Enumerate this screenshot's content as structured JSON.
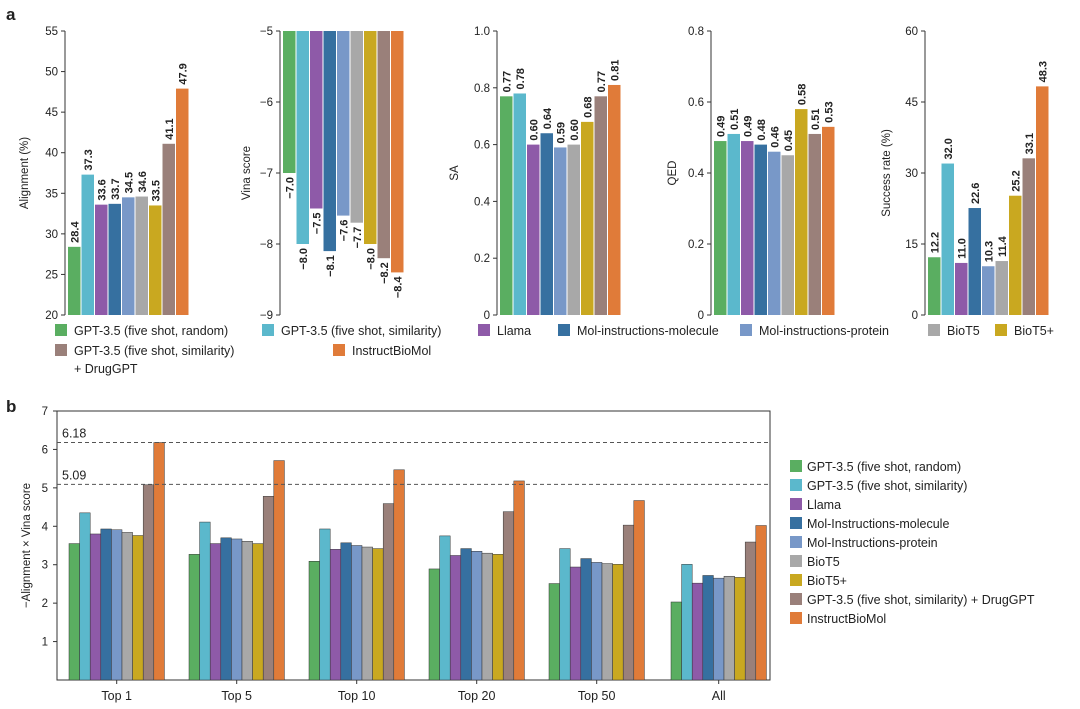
{
  "panel_labels": {
    "a": "a",
    "b": "b"
  },
  "legend_a": [
    {
      "label": "GPT-3.5 (five shot, random)",
      "color": "#5aae61"
    },
    {
      "label": "GPT-3.5 (five shot, similarity)",
      "color": "#5bb8cc"
    },
    {
      "label": "Llama",
      "color": "#8e5aa8"
    },
    {
      "label": "Mol-instructions-molecule",
      "color": "#3670a0"
    },
    {
      "label": "Mol-instructions-protein",
      "color": "#7898c8"
    },
    {
      "label": "BioT5",
      "color": "#a8a8a8"
    },
    {
      "label": "BioT5+",
      "color": "#c9a820"
    },
    {
      "label": "GPT-3.5 (five shot, similarity)",
      "label2": "+ DrugGPT",
      "color": "#9a807a"
    },
    {
      "label": "InstructBioMol",
      "color": "#e07b39"
    }
  ],
  "legend_b": [
    {
      "label": "GPT-3.5 (five shot, random)",
      "color": "#5aae61"
    },
    {
      "label": "GPT-3.5 (five shot, similarity)",
      "color": "#5bb8cc"
    },
    {
      "label": "Llama",
      "color": "#8e5aa8"
    },
    {
      "label": "Mol-Instructions-molecule",
      "color": "#3670a0"
    },
    {
      "label": "Mol-Instructions-protein",
      "color": "#7898c8"
    },
    {
      "label": "BioT5",
      "color": "#a8a8a8"
    },
    {
      "label": "BioT5+",
      "color": "#c9a820"
    },
    {
      "label": "GPT-3.5 (five shot, similarity) + DrugGPT",
      "color": "#9a807a"
    },
    {
      "label": "InstructBioMol",
      "color": "#e07b39"
    }
  ],
  "chart_data": [
    {
      "type": "bar",
      "ylabel": "Alignment (%)",
      "ylim": [
        20,
        55
      ],
      "yticks": [
        20,
        25,
        30,
        35,
        40,
        45,
        50,
        55
      ],
      "values": [
        28.4,
        37.3,
        33.6,
        33.7,
        34.5,
        34.6,
        33.5,
        41.1,
        47.9
      ],
      "labels": [
        "28.4",
        "37.3",
        "33.6",
        "33.7",
        "34.5",
        "34.6",
        "33.5",
        "41.1",
        "47.9"
      ],
      "grid": false
    },
    {
      "type": "bar",
      "ylabel": "Vina score",
      "ylim": [
        -9,
        -5
      ],
      "inverted": true,
      "yticks": [
        -9,
        -8,
        -7,
        -6,
        -5
      ],
      "ytick_labels": [
        "−9",
        "−8",
        "−7",
        "−6",
        "−5"
      ],
      "values": [
        -7.0,
        -8.0,
        -7.5,
        -8.1,
        -7.6,
        -7.7,
        -8.0,
        -8.2,
        -8.4
      ],
      "labels": [
        "−7.0",
        "−8.0",
        "−7.5",
        "−8.1",
        "−7.6",
        "−7.7",
        "−8.0",
        "−8.2",
        "−8.4"
      ],
      "grid": false
    },
    {
      "type": "bar",
      "ylabel": "SA",
      "ylim": [
        0,
        1.0
      ],
      "yticks": [
        0,
        0.2,
        0.4,
        0.6,
        0.8,
        1.0
      ],
      "ytick_labels": [
        "0",
        "0.2",
        "0.4",
        "0.6",
        "0.8",
        "1.0"
      ],
      "values": [
        0.77,
        0.78,
        0.6,
        0.64,
        0.59,
        0.6,
        0.68,
        0.77,
        0.81
      ],
      "labels": [
        "0.77",
        "0.78",
        "0.60",
        "0.64",
        "0.59",
        "0.60",
        "0.68",
        "0.77",
        "0.81"
      ],
      "grid": false
    },
    {
      "type": "bar",
      "ylabel": "QED",
      "ylim": [
        0,
        0.8
      ],
      "yticks": [
        0,
        0.2,
        0.4,
        0.6,
        0.8
      ],
      "ytick_labels": [
        "0",
        "0.2",
        "0.4",
        "0.6",
        "0.8"
      ],
      "values": [
        0.49,
        0.51,
        0.49,
        0.48,
        0.46,
        0.45,
        0.58,
        0.51,
        0.53
      ],
      "labels": [
        "0.49",
        "0.51",
        "0.49",
        "0.48",
        "0.46",
        "0.45",
        "0.58",
        "0.51",
        "0.53"
      ],
      "grid": false
    },
    {
      "type": "bar",
      "ylabel": "Success rate (%)",
      "ylim": [
        0,
        60
      ],
      "yticks": [
        0,
        15,
        30,
        45,
        60
      ],
      "ytick_labels": [
        "0",
        "15",
        "30",
        "45",
        "60"
      ],
      "values": [
        12.2,
        32.0,
        11.0,
        22.6,
        10.3,
        11.4,
        25.2,
        33.1,
        48.3
      ],
      "labels": [
        "12.2",
        "32.0",
        "11.0",
        "22.6",
        "10.3",
        "11.4",
        "25.2",
        "33.1",
        "48.3"
      ],
      "grid": false
    },
    {
      "type": "bar",
      "ylabel": "−Alignment × Vina score",
      "ylim": [
        0,
        7
      ],
      "yticks": [
        1,
        2,
        3,
        4,
        5,
        6,
        7
      ],
      "categories": [
        "Top 1",
        "Top 5",
        "Top 10",
        "Top 20",
        "Top 50",
        "All"
      ],
      "reference_lines": [
        {
          "value": 6.18,
          "label": "6.18"
        },
        {
          "value": 5.09,
          "label": "5.09"
        }
      ],
      "series": [
        {
          "name": "GPT-3.5 (five shot, random)",
          "values": [
            3.55,
            3.27,
            3.09,
            2.89,
            2.51,
            2.03
          ]
        },
        {
          "name": "GPT-3.5 (five shot, similarity)",
          "values": [
            4.35,
            4.11,
            3.93,
            3.75,
            3.42,
            3.01
          ]
        },
        {
          "name": "Llama",
          "values": [
            3.8,
            3.55,
            3.4,
            3.24,
            2.94,
            2.52
          ]
        },
        {
          "name": "Mol-Instructions-molecule",
          "values": [
            3.93,
            3.7,
            3.57,
            3.42,
            3.16,
            2.72
          ]
        },
        {
          "name": "Mol-Instructions-protein",
          "values": [
            3.91,
            3.67,
            3.5,
            3.35,
            3.06,
            2.65
          ]
        },
        {
          "name": "BioT5",
          "values": [
            3.84,
            3.61,
            3.46,
            3.3,
            3.03,
            2.7
          ]
        },
        {
          "name": "BioT5+",
          "values": [
            3.76,
            3.55,
            3.42,
            3.27,
            3.01,
            2.67
          ]
        },
        {
          "name": "GPT-3.5 (five shot, similarity) + DrugGPT",
          "values": [
            5.08,
            4.78,
            4.59,
            4.38,
            4.03,
            3.59
          ]
        },
        {
          "name": "InstructBioMol",
          "values": [
            6.18,
            5.71,
            5.47,
            5.18,
            4.67,
            4.02
          ]
        }
      ],
      "grid": false
    }
  ]
}
